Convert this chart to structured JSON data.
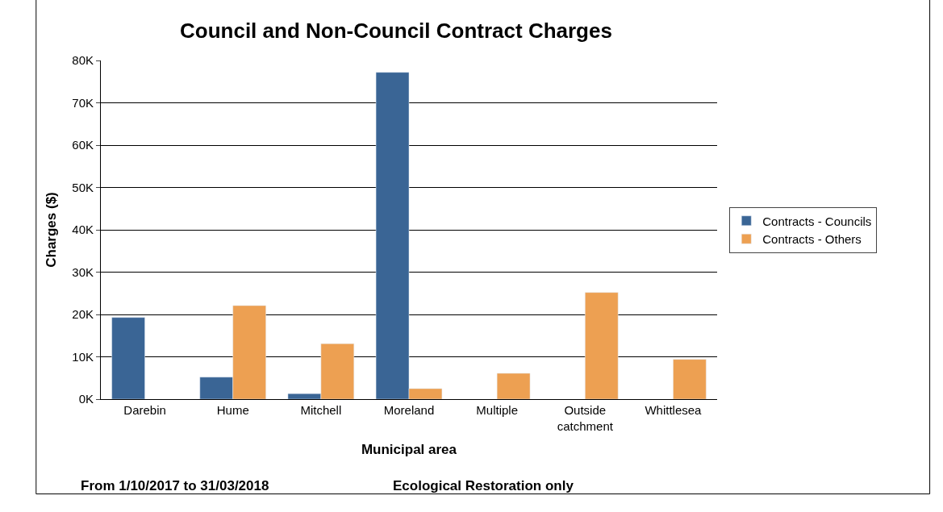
{
  "chart_data": {
    "type": "bar",
    "title": "Council and Non-Council Contract Charges",
    "xlabel": "Municipal area",
    "ylabel": "Charges ($)",
    "categories": [
      "Darebin",
      "Hume",
      "Mitchell",
      "Moreland",
      "Multiple",
      "Outside catchment",
      "Whittlesea"
    ],
    "series": [
      {
        "name": "Contracts - Councils",
        "color": "#3a6595",
        "values": [
          19300,
          5200,
          1300,
          77200,
          null,
          null,
          null
        ]
      },
      {
        "name": "Contracts - Others",
        "color": "#eda052",
        "values": [
          null,
          22100,
          13100,
          2500,
          6100,
          25200,
          9400
        ]
      }
    ],
    "ylim": [
      0,
      80000
    ],
    "yticks": [
      {
        "value": 0,
        "label": "0K"
      },
      {
        "value": 10000,
        "label": "10K"
      },
      {
        "value": 20000,
        "label": "20K"
      },
      {
        "value": 30000,
        "label": "30K"
      },
      {
        "value": 40000,
        "label": "40K"
      },
      {
        "value": 50000,
        "label": "50K"
      },
      {
        "value": 60000,
        "label": "60K"
      },
      {
        "value": 70000,
        "label": "70K"
      },
      {
        "value": 80000,
        "label": "80K"
      }
    ],
    "grid": "y",
    "legend": "right",
    "annotations": [
      "From 1/10/2017 to 31/03/2018",
      "Ecological Restoration only"
    ]
  }
}
